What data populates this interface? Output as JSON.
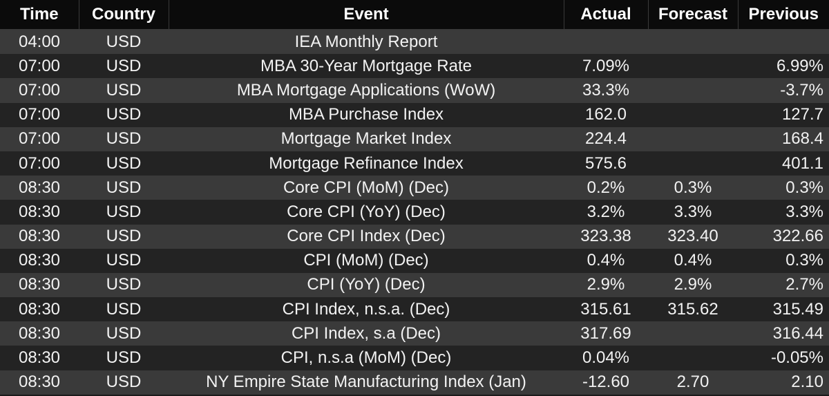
{
  "headers": {
    "time": "Time",
    "country": "Country",
    "event": "Event",
    "actual": "Actual",
    "forecast": "Forecast",
    "previous": "Previous"
  },
  "rows": [
    {
      "time": "04:00",
      "country": "USD",
      "event": "IEA Monthly Report",
      "actual": "",
      "forecast": "",
      "previous": ""
    },
    {
      "time": "07:00",
      "country": "USD",
      "event": "MBA 30-Year Mortgage Rate",
      "actual": "7.09%",
      "forecast": "",
      "previous": "6.99%"
    },
    {
      "time": "07:00",
      "country": "USD",
      "event": "MBA Mortgage Applications (WoW)",
      "actual": "33.3%",
      "forecast": "",
      "previous": "-3.7%"
    },
    {
      "time": "07:00",
      "country": "USD",
      "event": "MBA Purchase Index",
      "actual": "162.0",
      "forecast": "",
      "previous": "127.7"
    },
    {
      "time": "07:00",
      "country": "USD",
      "event": "Mortgage Market Index",
      "actual": "224.4",
      "forecast": "",
      "previous": "168.4"
    },
    {
      "time": "07:00",
      "country": "USD",
      "event": "Mortgage Refinance Index",
      "actual": "575.6",
      "forecast": "",
      "previous": "401.1"
    },
    {
      "time": "08:30",
      "country": "USD",
      "event": "Core CPI (MoM)  (Dec)",
      "actual": "0.2%",
      "forecast": "0.3%",
      "previous": "0.3%"
    },
    {
      "time": "08:30",
      "country": "USD",
      "event": "Core CPI (YoY)  (Dec)",
      "actual": "3.2%",
      "forecast": "3.3%",
      "previous": "3.3%"
    },
    {
      "time": "08:30",
      "country": "USD",
      "event": "Core CPI Index  (Dec)",
      "actual": "323.38",
      "forecast": "323.40",
      "previous": "322.66"
    },
    {
      "time": "08:30",
      "country": "USD",
      "event": "CPI (MoM)  (Dec)",
      "actual": "0.4%",
      "forecast": "0.4%",
      "previous": "0.3%"
    },
    {
      "time": "08:30",
      "country": "USD",
      "event": "CPI (YoY)  (Dec)",
      "actual": "2.9%",
      "forecast": "2.9%",
      "previous": "2.7%"
    },
    {
      "time": "08:30",
      "country": "USD",
      "event": "CPI Index, n.s.a.  (Dec)",
      "actual": "315.61",
      "forecast": "315.62",
      "previous": "315.49"
    },
    {
      "time": "08:30",
      "country": "USD",
      "event": "CPI Index, s.a  (Dec)",
      "actual": "317.69",
      "forecast": "",
      "previous": "316.44"
    },
    {
      "time": "08:30",
      "country": "USD",
      "event": "CPI, n.s.a (MoM)  (Dec)",
      "actual": "0.04%",
      "forecast": "",
      "previous": "-0.05%"
    },
    {
      "time": "08:30",
      "country": "USD",
      "event": "NY Empire State Manufacturing Index  (Jan)",
      "actual": "-12.60",
      "forecast": "2.70",
      "previous": "2.10"
    }
  ]
}
